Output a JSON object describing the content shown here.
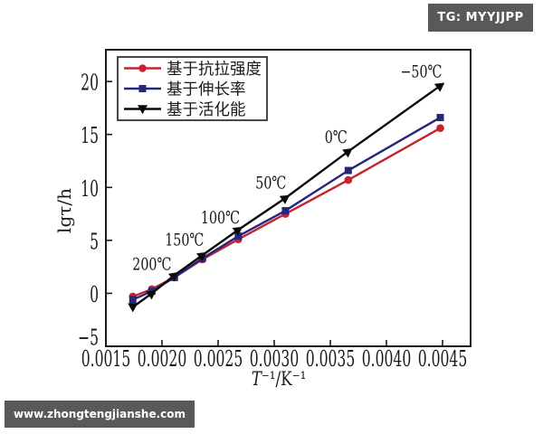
{
  "page": {
    "background": "#ffffff"
  },
  "badges": {
    "top_right": {
      "text": "TG: MYYJJPP",
      "bg": "#595959",
      "fg": "#ffffff"
    },
    "bottom_left": {
      "text": "www.zhongtengjianshe.com",
      "bg": "#595959",
      "fg": "#ffffff"
    }
  },
  "chart_data": {
    "type": "line",
    "title": "",
    "xlabel_parts": [
      {
        "text": "T",
        "italic": true
      },
      {
        "text": "⁻¹/K⁻¹",
        "italic": false
      }
    ],
    "ylabel": "lgτ/h",
    "xlim": [
      0.0015,
      0.00475
    ],
    "ylim": [
      -5,
      23
    ],
    "xticks": [
      0.0015,
      0.002,
      0.0025,
      0.003,
      0.0035,
      0.004,
      0.0045
    ],
    "xtick_labels": [
      "0.0015",
      "0.0020",
      "0.0025",
      "0.0030",
      "0.0035",
      "0.0040",
      "0.0045"
    ],
    "yticks": [
      -5,
      0,
      5,
      10,
      15,
      20
    ],
    "ytick_labels": [
      "−5",
      "0",
      "5",
      "10",
      "15",
      "20"
    ],
    "grid": false,
    "legend_position": "upper-left",
    "x": [
      0.00174,
      0.00191,
      0.00211,
      0.00236,
      0.00268,
      0.0031,
      0.00366,
      0.00448
    ],
    "series": [
      {
        "name": "基于抗拉强度",
        "color": "#c42430",
        "marker": "circle",
        "values": [
          -0.3,
          0.4,
          1.5,
          3.2,
          5.1,
          7.5,
          10.7,
          15.6
        ]
      },
      {
        "name": "基于伸长率",
        "color": "#26267d",
        "marker": "square",
        "values": [
          -0.6,
          0.2,
          1.5,
          3.3,
          5.4,
          7.8,
          11.6,
          16.6
        ]
      },
      {
        "name": "基于活化能",
        "color": "#0a0a0a",
        "marker": "triangle-down",
        "values": [
          -1.3,
          0.0,
          1.7,
          3.6,
          6.0,
          9.0,
          13.4,
          19.6
        ]
      }
    ],
    "annotations": [
      {
        "text": "200℃",
        "x": 0.00191,
        "y": 2.8
      },
      {
        "text": "150℃",
        "x": 0.0022,
        "y": 5.1
      },
      {
        "text": "100℃",
        "x": 0.00252,
        "y": 7.2
      },
      {
        "text": "50℃",
        "x": 0.00297,
        "y": 10.5
      },
      {
        "text": "0℃",
        "x": 0.00355,
        "y": 14.8
      },
      {
        "text": "−50℃",
        "x": 0.00431,
        "y": 21.0
      }
    ]
  }
}
